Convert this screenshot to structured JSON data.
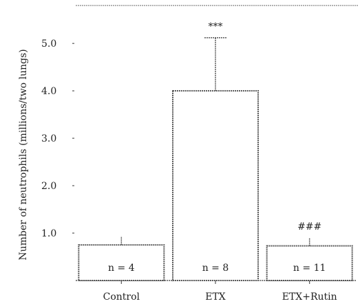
{
  "chart_data": {
    "type": "bar",
    "title": "",
    "xlabel": "",
    "ylabel": "Number of neutrophils (millions/two lungs)",
    "ylim": [
      0,
      5.8
    ],
    "yticks": [
      {
        "value": 1.0,
        "label": "1.0"
      },
      {
        "value": 2.0,
        "label": "2.0"
      },
      {
        "value": 3.0,
        "label": "3.0"
      },
      {
        "value": 4.0,
        "label": "4.0"
      },
      {
        "value": 5.0,
        "label": "5.0"
      }
    ],
    "categories": [
      "Control",
      "ETX",
      "ETX+Rutin"
    ],
    "values": [
      0.75,
      4.0,
      0.73
    ],
    "error_upper": [
      0.93,
      5.12,
      0.9
    ],
    "bar_labels": [
      "n = 4",
      "n = 8",
      "n = 11"
    ],
    "annotations": [
      "",
      "***",
      "###"
    ],
    "grid": false,
    "legend": "none",
    "colors": {
      "bar_fill": "#ffffff",
      "stroke": "#555555",
      "text": "#222222"
    }
  }
}
